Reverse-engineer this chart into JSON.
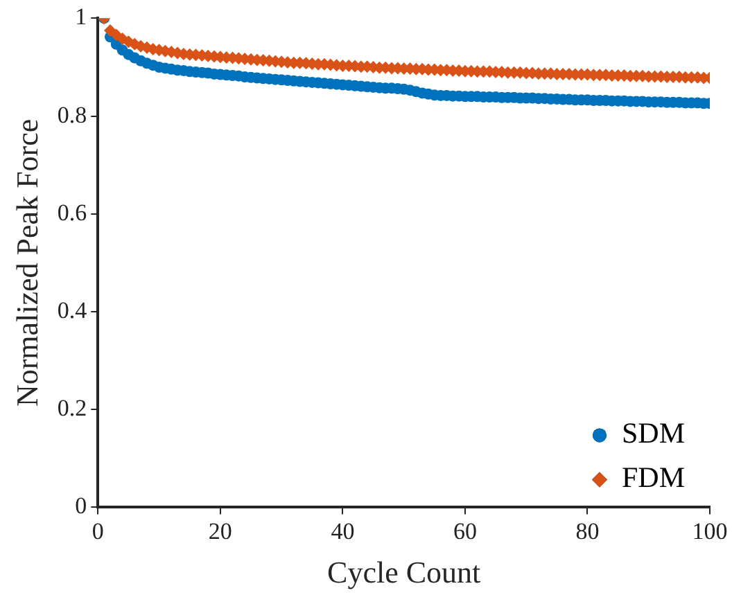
{
  "chart_data": {
    "type": "scatter",
    "xlabel": "Cycle Count",
    "ylabel": "Normalized Peak Force",
    "x": [
      1,
      2,
      3,
      4,
      5,
      6,
      7,
      8,
      9,
      10,
      11,
      12,
      13,
      14,
      15,
      16,
      17,
      18,
      19,
      20,
      21,
      22,
      23,
      24,
      25,
      26,
      27,
      28,
      29,
      30,
      31,
      32,
      33,
      34,
      35,
      36,
      37,
      38,
      39,
      40,
      41,
      42,
      43,
      44,
      45,
      46,
      47,
      48,
      49,
      50,
      51,
      52,
      53,
      54,
      55,
      56,
      57,
      58,
      59,
      60,
      61,
      62,
      63,
      64,
      65,
      66,
      67,
      68,
      69,
      70,
      71,
      72,
      73,
      74,
      75,
      76,
      77,
      78,
      79,
      80,
      81,
      82,
      83,
      84,
      85,
      86,
      87,
      88,
      89,
      90,
      91,
      92,
      93,
      94,
      95,
      96,
      97,
      98,
      99,
      100
    ],
    "series": [
      {
        "name": "SDM",
        "color": "#0072bd",
        "marker": "circle",
        "values": [
          1.0,
          0.962,
          0.947,
          0.935,
          0.926,
          0.919,
          0.913,
          0.908,
          0.904,
          0.9,
          0.898,
          0.896,
          0.894,
          0.893,
          0.891,
          0.89,
          0.889,
          0.888,
          0.886,
          0.885,
          0.884,
          0.883,
          0.882,
          0.88,
          0.879,
          0.878,
          0.877,
          0.876,
          0.875,
          0.874,
          0.873,
          0.872,
          0.871,
          0.87,
          0.869,
          0.868,
          0.867,
          0.866,
          0.865,
          0.864,
          0.863,
          0.862,
          0.861,
          0.86,
          0.859,
          0.858,
          0.857,
          0.857,
          0.856,
          0.855,
          0.853,
          0.85,
          0.847,
          0.845,
          0.843,
          0.842,
          0.842,
          0.841,
          0.841,
          0.84,
          0.84,
          0.84,
          0.839,
          0.839,
          0.839,
          0.838,
          0.838,
          0.838,
          0.837,
          0.837,
          0.837,
          0.836,
          0.836,
          0.835,
          0.835,
          0.834,
          0.834,
          0.833,
          0.833,
          0.833,
          0.832,
          0.832,
          0.832,
          0.831,
          0.831,
          0.831,
          0.83,
          0.83,
          0.83,
          0.829,
          0.829,
          0.829,
          0.828,
          0.828,
          0.828,
          0.827,
          0.827,
          0.827,
          0.826,
          0.826
        ]
      },
      {
        "name": "FDM",
        "color": "#d95319",
        "marker": "diamond",
        "values": [
          1.0,
          0.975,
          0.966,
          0.958,
          0.952,
          0.947,
          0.943,
          0.94,
          0.937,
          0.935,
          0.933,
          0.931,
          0.929,
          0.927,
          0.926,
          0.925,
          0.924,
          0.923,
          0.922,
          0.921,
          0.92,
          0.919,
          0.918,
          0.917,
          0.916,
          0.915,
          0.914,
          0.913,
          0.912,
          0.911,
          0.91,
          0.909,
          0.909,
          0.908,
          0.907,
          0.906,
          0.906,
          0.905,
          0.904,
          0.903,
          0.903,
          0.902,
          0.901,
          0.901,
          0.9,
          0.899,
          0.899,
          0.898,
          0.898,
          0.897,
          0.897,
          0.896,
          0.896,
          0.895,
          0.895,
          0.894,
          0.894,
          0.893,
          0.893,
          0.892,
          0.892,
          0.891,
          0.891,
          0.891,
          0.89,
          0.89,
          0.889,
          0.889,
          0.889,
          0.888,
          0.888,
          0.887,
          0.887,
          0.887,
          0.886,
          0.886,
          0.886,
          0.885,
          0.885,
          0.885,
          0.884,
          0.884,
          0.884,
          0.883,
          0.883,
          0.883,
          0.882,
          0.882,
          0.882,
          0.881,
          0.881,
          0.881,
          0.88,
          0.88,
          0.88,
          0.879,
          0.879,
          0.879,
          0.878,
          0.878
        ]
      }
    ],
    "xlim": [
      0,
      100
    ],
    "xticks": [
      0,
      20,
      40,
      60,
      80,
      100
    ],
    "ylim": [
      0,
      1
    ],
    "yticks": [
      0,
      0.2,
      0.4,
      0.6,
      0.8,
      1
    ],
    "grid": false,
    "legend": "bottom right"
  }
}
